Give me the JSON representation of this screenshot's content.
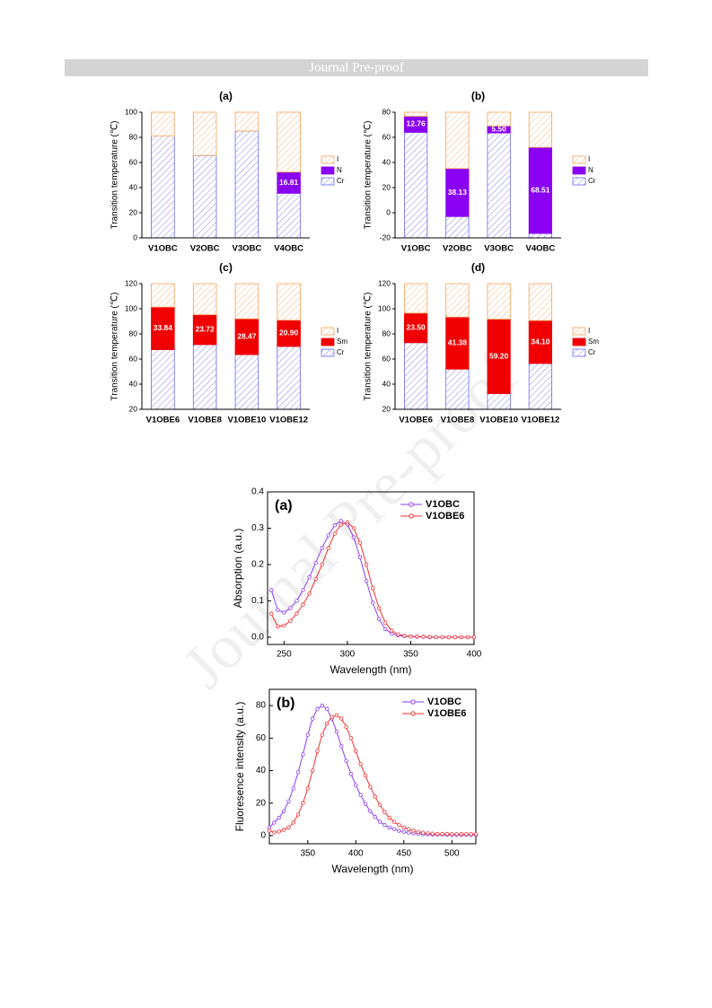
{
  "header": {
    "title": "Journal Pre-proof"
  },
  "watermark": "Journal Pre-proof",
  "chart_data": [
    {
      "type": "bar",
      "title": "(a)",
      "ylabel": "Transition temperature (℃)",
      "categories": [
        "V1OBC",
        "V2OBC",
        "V3OBC",
        "V4OBC"
      ],
      "ylim": [
        0,
        100
      ],
      "yticks": [
        0,
        20,
        40,
        60,
        80,
        100
      ],
      "series": [
        {
          "name": "I",
          "color": "#f4a25c",
          "hatch": true,
          "values": [
            19,
            34.5,
            15,
            47.7
          ]
        },
        {
          "name": "N",
          "color": "#8a00f0",
          "hatch": false,
          "values": [
            null,
            null,
            null,
            16.81
          ],
          "value_labels": [
            null,
            null,
            null,
            "16.81"
          ]
        },
        {
          "name": "Cr",
          "color": "#6a6af0",
          "hatch": true,
          "values": [
            81,
            65.5,
            85,
            35.5
          ]
        }
      ]
    },
    {
      "type": "bar",
      "title": "(b)",
      "ylabel": "Transition temperature (℃)",
      "categories": [
        "V1OBC",
        "V2OBC",
        "V3OBC",
        "V4OBC"
      ],
      "ylim": [
        -20,
        80
      ],
      "yticks": [
        -20,
        0,
        20,
        40,
        60,
        80
      ],
      "series": [
        {
          "name": "I",
          "color": "#f4a25c",
          "hatch": true,
          "values": [
            3.24,
            44.87,
            11,
            27.99
          ]
        },
        {
          "name": "N",
          "color": "#8a00f0",
          "hatch": false,
          "values": [
            12.76,
            38.13,
            5.5,
            68.51
          ],
          "value_labels": [
            "12.76",
            "38.13",
            "5.50",
            "68.51"
          ]
        },
        {
          "name": "Cr",
          "color": "#6a6af0",
          "hatch": true,
          "values": [
            64,
            -3,
            63.5,
            -16.5
          ]
        }
      ]
    },
    {
      "type": "bar",
      "title": "(c)",
      "ylabel": "Transition temperature (℃)",
      "categories": [
        "V1OBE6",
        "V1OBE8",
        "V1OBE10",
        "V1OBE12"
      ],
      "ylim": [
        20,
        120
      ],
      "yticks": [
        20,
        40,
        60,
        80,
        100,
        120
      ],
      "series": [
        {
          "name": "I",
          "color": "#f4a25c",
          "hatch": true,
          "values": [
            18.66,
            24.78,
            28.03,
            29.1
          ]
        },
        {
          "name": "Sm",
          "color": "#f00000",
          "hatch": false,
          "values": [
            33.84,
            23.72,
            28.47,
            20.9
          ],
          "value_labels": [
            "33.84",
            "23.72",
            "28.47",
            "20.90"
          ]
        },
        {
          "name": "Cr",
          "color": "#6a6af0",
          "hatch": true,
          "values": [
            67.5,
            71.5,
            63.5,
            70
          ]
        }
      ]
    },
    {
      "type": "bar",
      "title": "(d)",
      "ylabel": "Transition temperature (℃)",
      "categories": [
        "V1OBE6",
        "V1OBE8",
        "V1OBE10",
        "V1OBE12"
      ],
      "ylim": [
        20,
        120
      ],
      "yticks": [
        20,
        40,
        60,
        80,
        100,
        120
      ],
      "series": [
        {
          "name": "I",
          "color": "#f4a25c",
          "hatch": true,
          "values": [
            23.5,
            26.62,
            28.3,
            29.4
          ]
        },
        {
          "name": "Sm",
          "color": "#f00000",
          "hatch": false,
          "values": [
            23.5,
            41.38,
            59.2,
            34.1
          ],
          "value_labels": [
            "23.50",
            "41.38",
            "59.20",
            "34.10"
          ]
        },
        {
          "name": "Cr",
          "color": "#6a6af0",
          "hatch": true,
          "values": [
            73,
            52,
            32.5,
            56.5
          ]
        }
      ]
    },
    {
      "type": "line",
      "title": "(a)",
      "xlabel": "Wavelength (nm)",
      "ylabel": "Absorption (a.u.)",
      "xlim": [
        237,
        400
      ],
      "xticks": [
        250,
        300,
        350,
        400
      ],
      "ylim": [
        -0.02,
        0.4
      ],
      "yticks": [
        {
          "value": 0,
          "label": "0.0"
        },
        0.1,
        0.2,
        0.3,
        0.4
      ],
      "x": [
        240,
        245,
        250,
        255,
        260,
        265,
        270,
        275,
        280,
        285,
        290,
        295,
        300,
        305,
        310,
        315,
        320,
        325,
        330,
        335,
        340,
        345,
        350,
        355,
        360,
        365,
        370,
        375,
        380,
        385,
        390,
        395,
        400
      ],
      "series": [
        {
          "name": "V1OBC",
          "color": "#8c3cf0",
          "values": [
            0.13,
            0.075,
            0.068,
            0.08,
            0.1,
            0.13,
            0.165,
            0.205,
            0.245,
            0.28,
            0.308,
            0.32,
            0.31,
            0.275,
            0.22,
            0.155,
            0.095,
            0.05,
            0.022,
            0.01,
            0.005,
            0.003,
            0.002,
            0.001,
            0.001,
            0,
            0,
            0,
            0,
            0,
            0,
            0,
            0
          ]
        },
        {
          "name": "V1OBE6",
          "color": "#f03030",
          "values": [
            0.065,
            0.03,
            0.032,
            0.045,
            0.065,
            0.09,
            0.12,
            0.16,
            0.2,
            0.245,
            0.285,
            0.31,
            0.316,
            0.3,
            0.26,
            0.2,
            0.135,
            0.08,
            0.04,
            0.018,
            0.008,
            0.004,
            0.002,
            0.002,
            0.001,
            0.001,
            0,
            0,
            0,
            0,
            0,
            0,
            0
          ]
        }
      ]
    },
    {
      "type": "line",
      "title": "(b)",
      "xlabel": "Wavelength (nm)",
      "ylabel": "Fluoresence intensity (a.u.)",
      "xlim": [
        310,
        525
      ],
      "xticks": [
        350,
        400,
        450,
        500
      ],
      "ylim": [
        -5,
        90
      ],
      "yticks": [
        0,
        20,
        40,
        60,
        80
      ],
      "x": [
        310,
        315,
        320,
        325,
        330,
        335,
        340,
        345,
        350,
        355,
        360,
        365,
        370,
        375,
        380,
        385,
        390,
        395,
        400,
        405,
        410,
        415,
        420,
        425,
        430,
        435,
        440,
        445,
        450,
        455,
        460,
        465,
        470,
        475,
        480,
        485,
        490,
        495,
        500,
        505,
        510,
        515,
        520,
        525
      ],
      "series": [
        {
          "name": "V1OBC",
          "color": "#8c3cf0",
          "values": [
            5,
            8,
            11,
            15,
            21,
            29,
            39,
            50,
            62,
            72,
            78,
            80,
            78,
            72,
            64,
            55,
            46,
            38,
            31,
            25,
            19.5,
            15,
            11.5,
            8.5,
            6.5,
            5,
            4,
            3,
            2.3,
            1.8,
            1.4,
            1.1,
            0.9,
            0.8,
            0.7,
            0.6,
            0.6,
            0.5,
            0.5,
            0.5,
            0.5,
            0.5,
            0.5,
            0.5
          ]
        },
        {
          "name": "V1OBE6",
          "color": "#f03030",
          "values": [
            3,
            2,
            2.5,
            3.5,
            5,
            8,
            13,
            20,
            29,
            40,
            52,
            62,
            69,
            73,
            74,
            72,
            67,
            60,
            52,
            44,
            37,
            30,
            24,
            19,
            14.5,
            11,
            8.5,
            6.5,
            5,
            4,
            3,
            2.3,
            1.8,
            1.4,
            1.2,
            1,
            1,
            1,
            0.9,
            0.9,
            0.9,
            0.9,
            0.9,
            0.9
          ]
        }
      ]
    }
  ]
}
